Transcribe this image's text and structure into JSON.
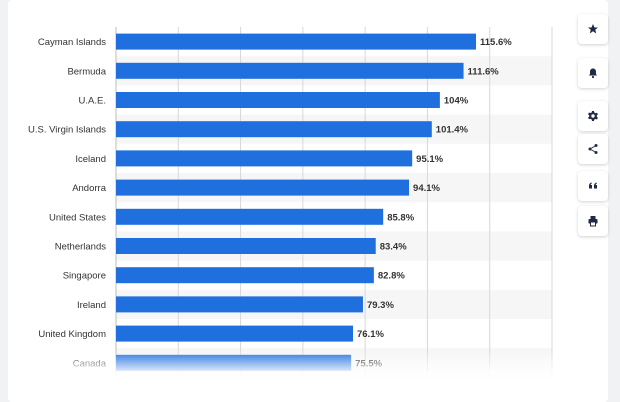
{
  "colors": {
    "bar": "#1f6fde",
    "stripe": "#f6f6f6",
    "grid": "#d8d8d8",
    "label": "#333333",
    "icon": "#1f2a44"
  },
  "toolbar": {
    "icons": [
      "star-icon",
      "bell-icon",
      "gear-icon",
      "share-icon",
      "quote-icon",
      "print-icon"
    ]
  },
  "chart_data": {
    "type": "bar",
    "orientation": "horizontal",
    "title": "",
    "xlabel": "",
    "ylabel": "",
    "xlim": [
      0,
      140
    ],
    "grid": true,
    "categories": [
      "Cayman Islands",
      "Bermuda",
      "U.A.E.",
      "U.S. Virgin Islands",
      "Iceland",
      "Andorra",
      "United States",
      "Netherlands",
      "Singapore",
      "Ireland",
      "United Kingdom",
      "Canada"
    ],
    "values": [
      115.6,
      111.6,
      104,
      101.4,
      95.1,
      94.1,
      85.8,
      83.4,
      82.8,
      79.3,
      76.1,
      75.5
    ],
    "value_labels": [
      "115.6%",
      "111.6%",
      "104%",
      "101.4%",
      "95.1%",
      "94.1%",
      "85.8%",
      "83.4%",
      "82.8%",
      "79.3%",
      "76.1%",
      "75.5%"
    ]
  }
}
